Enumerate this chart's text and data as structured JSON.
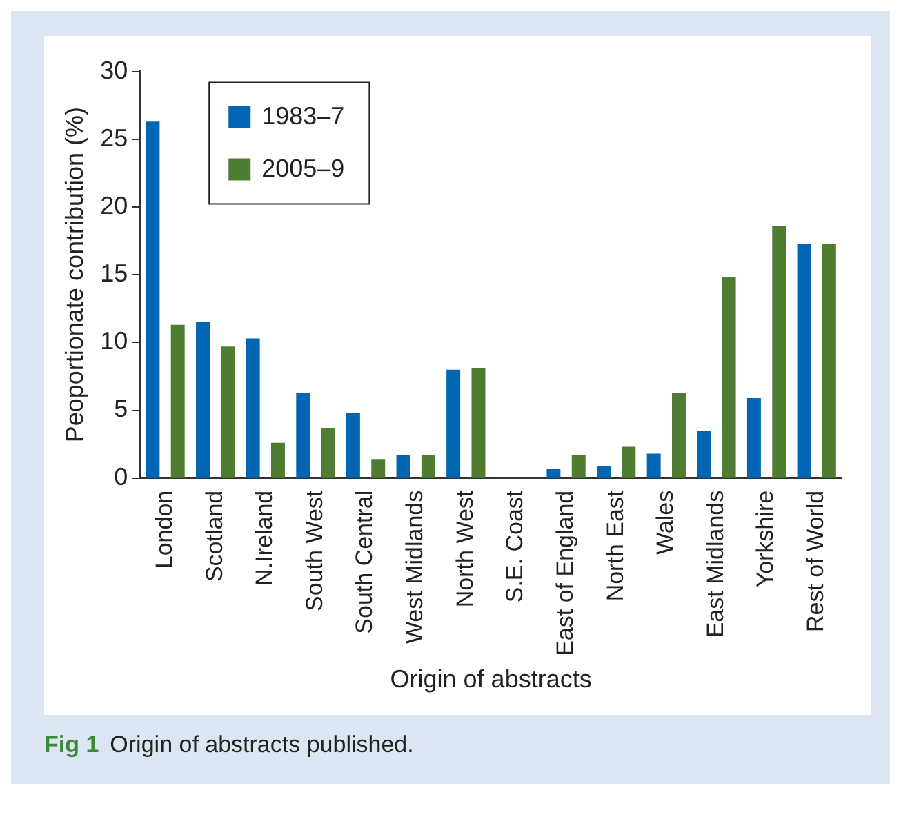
{
  "chart_data": {
    "type": "bar",
    "xlabel": "Origin of abstracts",
    "ylabel": "Peoportionate contribution (%)",
    "categories": [
      "London",
      "Scotland",
      "N.Ireland",
      "South West",
      "South Central",
      "West Midlands",
      "North West",
      "S.E. Coast",
      "East of England",
      "North East",
      "Wales",
      "East Midlands",
      "Yorkshire",
      "Rest of World"
    ],
    "series": [
      {
        "name": "1983–7",
        "color": "#0066b3",
        "values": [
          26.3,
          11.5,
          10.3,
          6.3,
          4.8,
          1.7,
          8.0,
          0,
          0.7,
          0.9,
          1.8,
          3.5,
          5.9,
          17.3
        ]
      },
      {
        "name": "2005–9",
        "color": "#4e7d32",
        "values": [
          11.3,
          9.7,
          2.6,
          3.7,
          1.4,
          1.7,
          8.1,
          0,
          1.7,
          2.3,
          6.3,
          14.8,
          18.6,
          17.3
        ]
      }
    ],
    "ylim": [
      0,
      30
    ],
    "yticks": [
      0,
      5,
      10,
      15,
      20,
      25,
      30
    ],
    "grid": false,
    "legend": "top left",
    "annotations": [
      "Fig 1",
      "Origin of abstracts published."
    ]
  }
}
